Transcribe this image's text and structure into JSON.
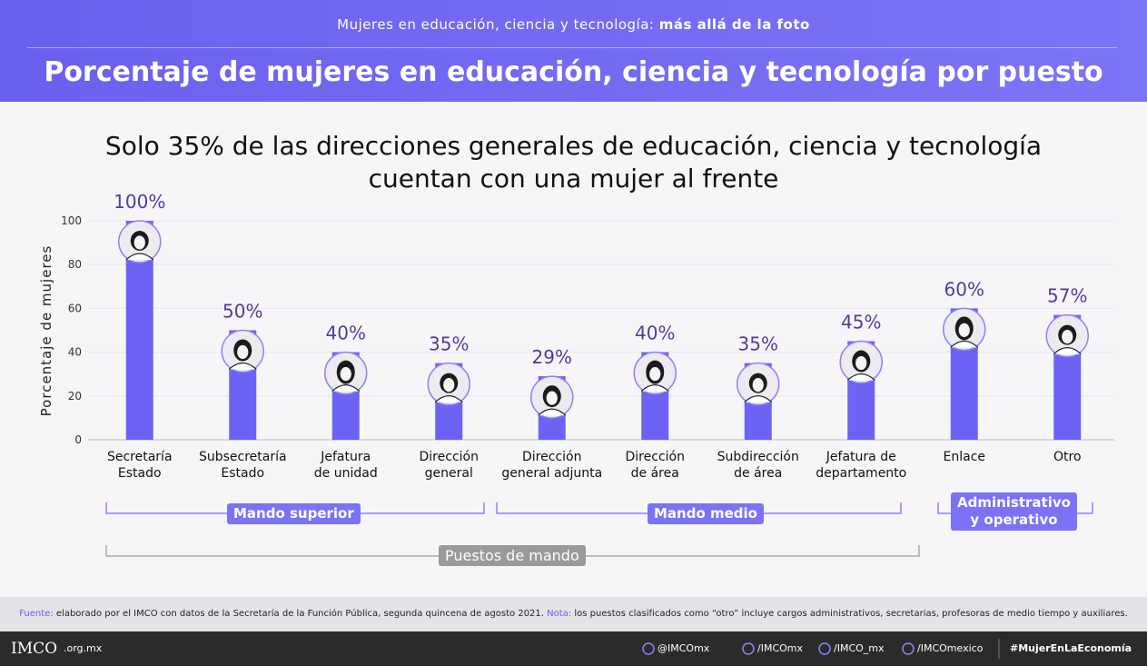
{
  "header": {
    "subtitle_plain": "Mujeres en educación, ciencia y tecnología:",
    "subtitle_bold": "más allá de la foto",
    "title": "Porcentaje de mujeres en educación, ciencia y tecnología por puesto"
  },
  "chart_data": {
    "type": "bar",
    "title": "Solo 35% de las direcciones generales de educación, ciencia y tecnología\ncuentan con una mujer al frente",
    "y_label": "Porcentaje de mujeres",
    "categories": [
      "Secretaría\nEstado",
      "Subsecretaría\nEstado",
      "Jefatura\nde unidad",
      "Dirección\ngeneral",
      "Dirección\ngeneral adjunta",
      "Dirección\nde área",
      "Subdirección\nde área",
      "Jefatura de\ndepartamento",
      "Enlace",
      "Otro"
    ],
    "values": [
      100,
      50,
      40,
      35,
      29,
      40,
      35,
      45,
      60,
      57
    ],
    "value_labels": [
      "100%",
      "50%",
      "40%",
      "35%",
      "29%",
      "40%",
      "35%",
      "45%",
      "60%",
      "57%"
    ],
    "color": "#6c63f5",
    "ylim": [
      0,
      100
    ],
    "yticks": [
      0,
      20,
      40,
      60,
      80,
      100
    ],
    "grid": true,
    "groups": [
      "Mando superior",
      "Mando medio",
      "Administrativo\ny operativo",
      "Puestos de mando"
    ]
  },
  "footer": {
    "source_key": "Fuente:",
    "source": "elaborado por el IMCO con datos de la Secretaría de la Función Pública, segunda quincena de agosto 2021.",
    "note_key": "Nota:",
    "note": "los puestos clasificados como “otro” incluye cargos administrativos, secretarias, profesoras de medio tiempo y auxiliares."
  },
  "bottom": {
    "logo": "IMCO",
    "domain": ".org.mx",
    "twitter": "@IMCOmx",
    "facebook": "/IMCOmx",
    "instagram": "/IMCO_mx",
    "youtube": "/IMCOmexico",
    "hashtag": "#MujerEnLaEconomía"
  }
}
